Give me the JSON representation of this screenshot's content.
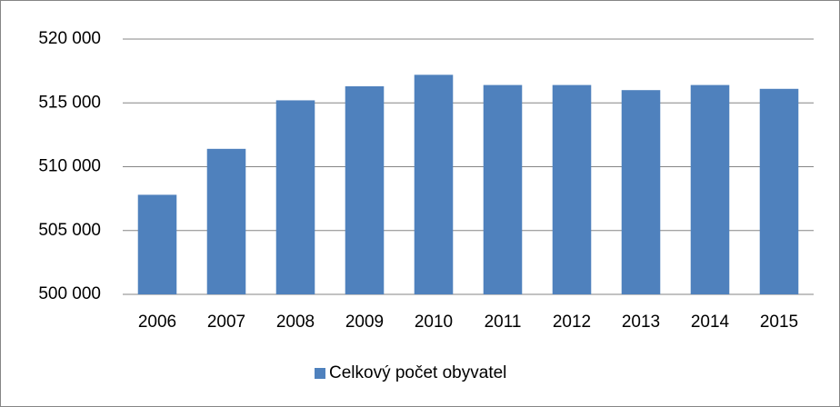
{
  "chart_data": {
    "type": "bar",
    "categories": [
      "2006",
      "2007",
      "2008",
      "2009",
      "2010",
      "2011",
      "2012",
      "2013",
      "2014",
      "2015"
    ],
    "series": [
      {
        "name": "Celkový počet obyvatel",
        "color": "#4f81bd",
        "values": [
          507800,
          511400,
          515200,
          516300,
          517200,
          516400,
          516400,
          516000,
          516400,
          516100
        ]
      }
    ],
    "ylim": [
      500000,
      520000
    ],
    "yticks": [
      {
        "value": 500000,
        "label": "500 000"
      },
      {
        "value": 505000,
        "label": "505 000"
      },
      {
        "value": 510000,
        "label": "510 000"
      },
      {
        "value": 515000,
        "label": "515 000"
      },
      {
        "value": 520000,
        "label": "520 000"
      }
    ],
    "grid": true,
    "legend": "bottom"
  }
}
